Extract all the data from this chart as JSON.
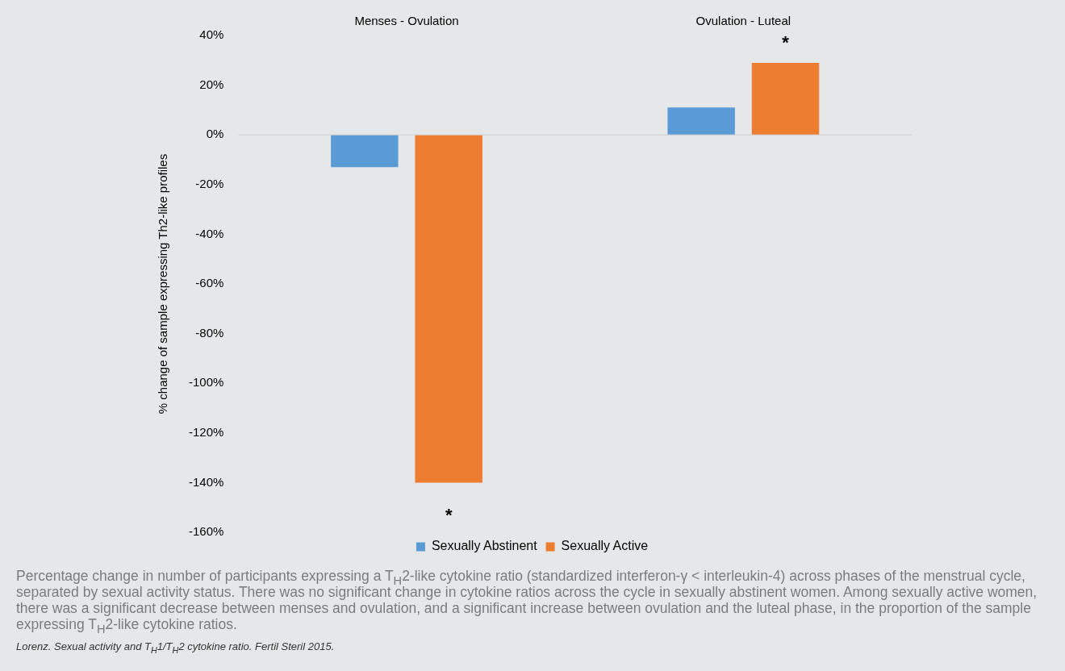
{
  "chart_data": {
    "type": "bar",
    "ylabel": "% change of sample expressing Th2-like profiles",
    "categories": [
      "Menses - Ovulation",
      "Ovulation - Luteal"
    ],
    "series": [
      {
        "name": "Sexually Abstinent",
        "color": "#5b9bd5",
        "values": [
          -13,
          11
        ]
      },
      {
        "name": "Sexually Active",
        "color": "#ed7d31",
        "values": [
          -140,
          29
        ]
      }
    ],
    "ylim": [
      -160,
      40
    ],
    "yticks": [
      {
        "value": -160,
        "label": "-160%"
      },
      {
        "value": -140,
        "label": "-140%"
      },
      {
        "value": -120,
        "label": "-120%"
      },
      {
        "value": -100,
        "label": "-100%"
      },
      {
        "value": -80,
        "label": "-80%"
      },
      {
        "value": -60,
        "label": "-60%"
      },
      {
        "value": -40,
        "label": "-40%"
      },
      {
        "value": -20,
        "label": "-20%"
      },
      {
        "value": 0,
        "label": "0%"
      },
      {
        "value": 20,
        "label": "20%"
      },
      {
        "value": 40,
        "label": "40%"
      }
    ],
    "legend": "bottom",
    "annotations": [
      "*",
      "*",
      "Percentage change in number of participants expressing a T$_{H}$2-like cytokine ratio (standardized interferon-γ < interleukin-4) across phases of the menstrual cycle, separated by sexual activity status. There was no significant change in cytokine ratios across the cycle in sexually abstinent women. Among sexually active women, there was a significant decrease between menses and ovulation, and a significant increase between ovulation and the luteal phase, in the proportion of the sample expressing T$_{H}$2-like cytokine ratios.",
      "Lorenz. Sexual activity and T$_{H}$1/T$_{H}$2 cytokine ratio. Fertil Steril 2015."
    ]
  }
}
